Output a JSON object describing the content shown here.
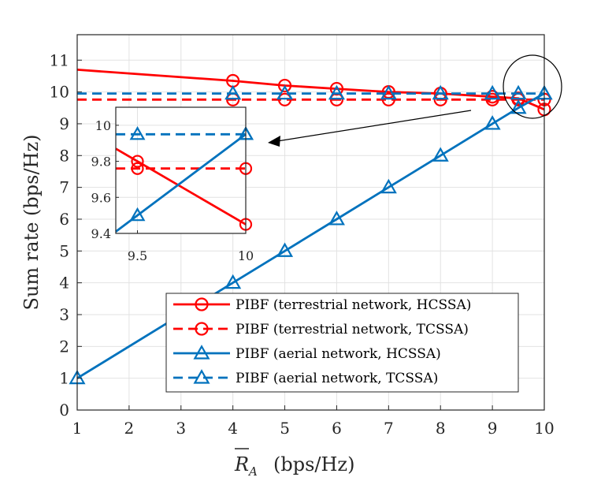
{
  "chart_data": {
    "type": "line",
    "ylabel": "Sum rate (bps/Hz)",
    "xlabel": "(bps/Hz)",
    "xlabel_symbol": "R",
    "xlabel_subscript": "A",
    "xlim": [
      1,
      10
    ],
    "ylim": [
      0,
      11.8
    ],
    "xticks": [
      1,
      2,
      3,
      4,
      5,
      6,
      7,
      8,
      9,
      10
    ],
    "yticks": [
      0,
      1,
      2,
      3,
      4,
      5,
      6,
      7,
      8,
      9,
      10,
      11
    ],
    "grid": true,
    "legend_position": "bottom-right",
    "series": [
      {
        "name": "PIBF (terrestrial network, HCSSA)",
        "color": "#ff0000",
        "dashed": false,
        "marker": "circle",
        "x": [
          1,
          4,
          5,
          6,
          7,
          8,
          9,
          9.5,
          10
        ],
        "y": [
          10.7,
          10.35,
          10.2,
          10.1,
          10.0,
          9.95,
          9.85,
          9.8,
          9.45
        ]
      },
      {
        "name": "PIBF (terrestrial network, TCSSA)",
        "color": "#ff0000",
        "dashed": true,
        "marker": "circle",
        "x": [
          1,
          4,
          5,
          6,
          7,
          8,
          9,
          9.5,
          10
        ],
        "y": [
          9.76,
          9.76,
          9.76,
          9.76,
          9.76,
          9.76,
          9.76,
          9.76,
          9.76
        ]
      },
      {
        "name": "PIBF (aerial network, HCSSA)",
        "color": "#0072bd",
        "dashed": false,
        "marker": "triangle",
        "x": [
          1,
          4,
          5,
          6,
          7,
          8,
          9,
          9.5,
          10
        ],
        "y": [
          1,
          4,
          5,
          6,
          7,
          8,
          9,
          9.5,
          9.95
        ]
      },
      {
        "name": "PIBF (aerial network, TCSSA)",
        "color": "#0072bd",
        "dashed": true,
        "marker": "triangle",
        "x": [
          1,
          4,
          5,
          6,
          7,
          8,
          9,
          9.5,
          10
        ],
        "y": [
          9.95,
          9.95,
          9.95,
          9.95,
          9.95,
          9.95,
          9.95,
          9.95,
          9.95
        ]
      }
    ],
    "inset": {
      "xlim": [
        9.4,
        10
      ],
      "ylim": [
        9.4,
        10.1
      ],
      "xticks": [
        9.5,
        10
      ],
      "yticks": [
        9.4,
        9.6,
        9.8,
        10
      ],
      "series": [
        {
          "x": [
            9.5,
            10
          ],
          "y": [
            9.8,
            9.45
          ]
        },
        {
          "x": [
            9.5,
            10
          ],
          "y": [
            9.76,
            9.76
          ]
        },
        {
          "x": [
            9.5,
            10
          ],
          "y": [
            9.5,
            9.95
          ]
        },
        {
          "x": [
            9.5,
            10
          ],
          "y": [
            9.95,
            9.95
          ]
        }
      ]
    }
  }
}
